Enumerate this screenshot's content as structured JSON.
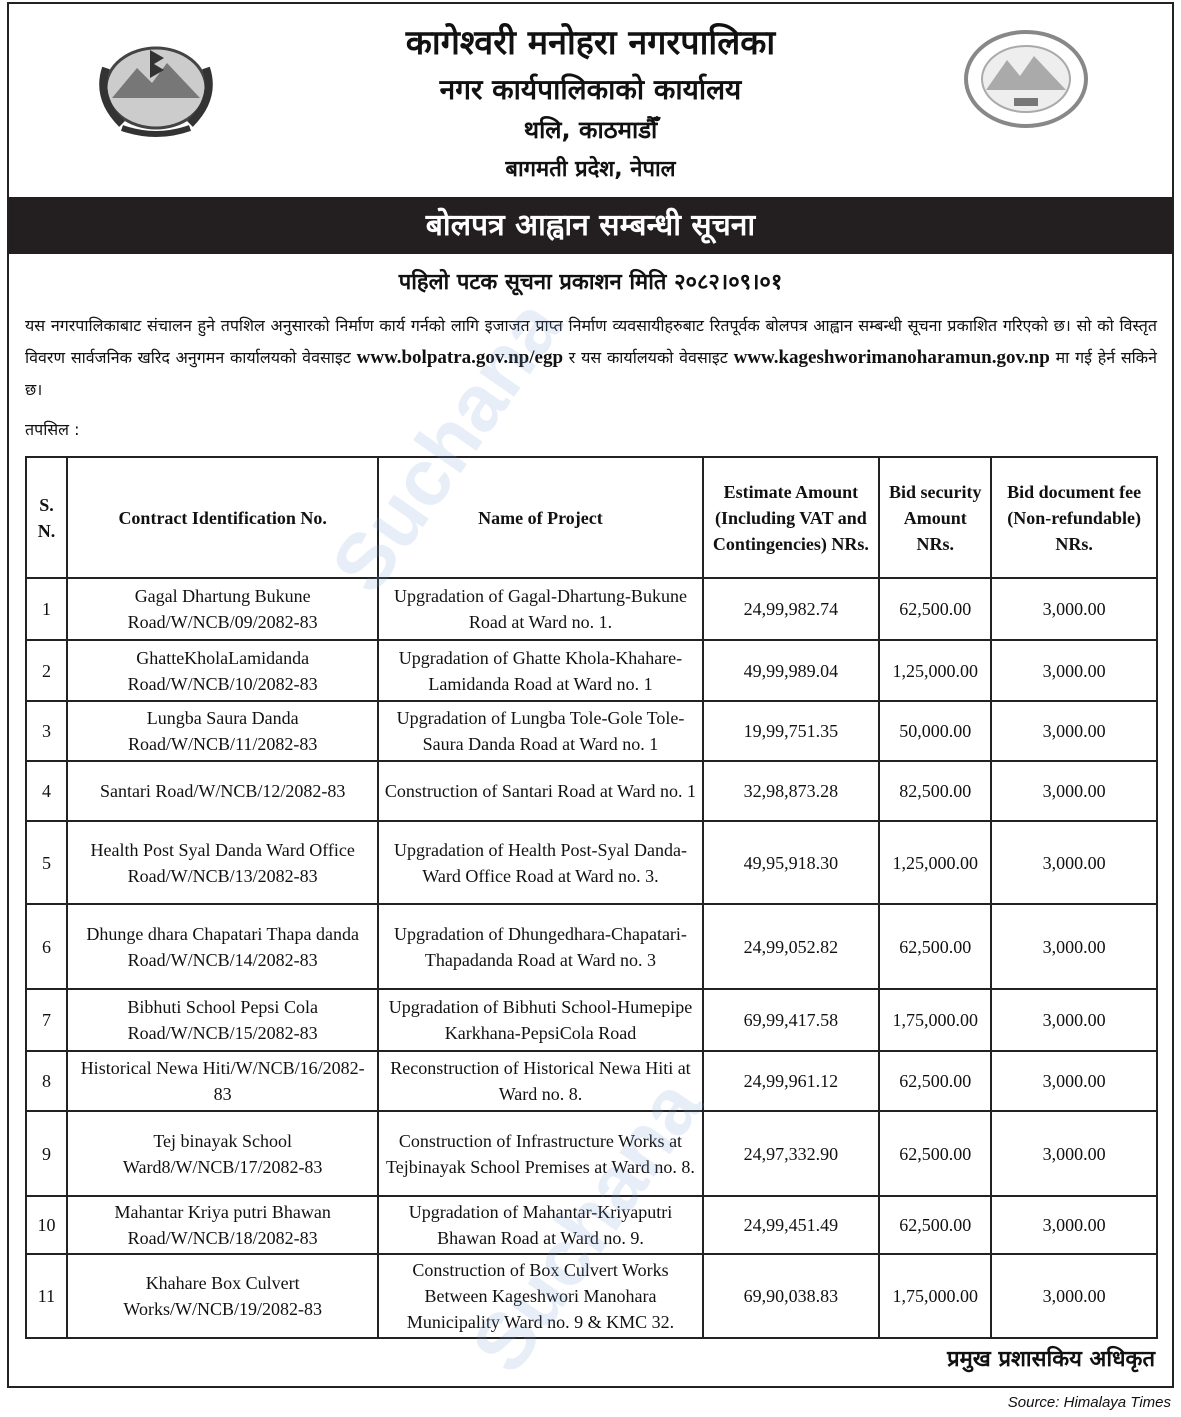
{
  "header": {
    "line1": "कागेश्वरी मनोहरा नगरपालिका",
    "line2": "नगर कार्यपालिकाको कार्यालय",
    "line3": "थलि, काठमाडौँ",
    "line4": "बागमती प्रदेश, नेपाल"
  },
  "notice_title": "बोलपत्र आह्वान सम्बन्धी सूचना",
  "publish_date": "पहिलो पटक सूचना प्रकाशन मिति २०८२।०९।०१",
  "body": {
    "text1": "यस नगरपालिकाबाट संचालन हुने तपशिल अनुसारको निर्माण कार्य गर्नको लागि इजाजत प्राप्त निर्माण व्यवसायीहरुबाट रितपूर्वक बोलपत्र आह्वान सम्बन्धी सूचना प्रकाशित गरिएको छ। सो को विस्तृत विवरण सार्वजनिक खरिद अनुगमन कार्यालयको वेवसाइट ",
    "link1": "www.bolpatra.gov.np/egp",
    "text2": " र यस कार्यालयको वेवसाइट ",
    "link2": "www.kageshworimanoharamun.gov.np",
    "text3": " मा गई हेर्न सकिने छ।"
  },
  "tapasil": "तपसिल :",
  "table": {
    "headers": [
      "S. N.",
      "Contract Identification No.",
      "Name of Project",
      "Estimate Amount (Including VAT and Contingencies) NRs.",
      "Bid security Amount NRs.",
      "Bid document fee (Non-refundable) NRs."
    ],
    "rows": [
      [
        "1",
        "Gagal Dhartung Bukune Road/W/NCB/09/2082-83",
        "Upgradation of Gagal-Dhartung-Bukune Road at Ward no. 1.",
        "24,99,982.74",
        "62,500.00",
        "3,000.00"
      ],
      [
        "2",
        "GhatteKholaLamidanda Road/W/NCB/10/2082-83",
        "Upgradation of Ghatte Khola-Khahare-Lamidanda Road at Ward no. 1",
        "49,99,989.04",
        "1,25,000.00",
        "3,000.00"
      ],
      [
        "3",
        "Lungba Saura Danda Road/W/NCB/11/2082-83",
        "Upgradation of Lungba Tole-Gole Tole-Saura Danda Road at Ward no. 1",
        "19,99,751.35",
        "50,000.00",
        "3,000.00"
      ],
      [
        "4",
        "Santari Road/W/NCB/12/2082-83",
        "Construction of Santari Road at Ward no. 1",
        "32,98,873.28",
        "82,500.00",
        "3,000.00"
      ],
      [
        "5",
        "Health Post Syal Danda Ward Office Road/W/NCB/13/2082-83",
        "Upgradation of Health Post-Syal Danda- Ward Office Road at Ward no. 3.",
        "49,95,918.30",
        "1,25,000.00",
        "3,000.00"
      ],
      [
        "6",
        "Dhunge dhara Chapatari Thapa danda Road/W/NCB/14/2082-83",
        "Upgradation of Dhungedhara-Chapatari- Thapadanda Road at Ward no. 3",
        "24,99,052.82",
        "62,500.00",
        "3,000.00"
      ],
      [
        "7",
        "Bibhuti School Pepsi Cola Road/W/NCB/15/2082-83",
        "Upgradation of Bibhuti School-Humepipe Karkhana-PepsiCola Road",
        "69,99,417.58",
        "1,75,000.00",
        "3,000.00"
      ],
      [
        "8",
        "Historical Newa Hiti/W/NCB/16/2082-83",
        "Reconstruction of Historical Newa Hiti at Ward no. 8.",
        "24,99,961.12",
        "62,500.00",
        "3,000.00"
      ],
      [
        "9",
        "Tej binayak School Ward8/W/NCB/17/2082-83",
        "Construction of Infrastructure Works at Tejbinayak School Premises at Ward no. 8.",
        "24,97,332.90",
        "62,500.00",
        "3,000.00"
      ],
      [
        "10",
        "Mahantar Kriya putri Bhawan Road/W/NCB/18/2082-83",
        "Upgradation of Mahantar-Kriyaputri Bhawan Road at Ward no. 9.",
        "24,99,451.49",
        "62,500.00",
        "3,000.00"
      ],
      [
        "11",
        "Khahare Box Culvert Works/W/NCB/19/2082-83",
        "Construction of Box Culvert Works Between Kageshwori Manohara Municipality Ward no. 9 & KMC 32.",
        "69,90,038.83",
        "1,75,000.00",
        "3,000.00"
      ]
    ]
  },
  "signature": "प्रमुख प्रशासकिय अधिकृत",
  "source": "Source: Himalaya Times",
  "watermark": "Suchana",
  "logo_right_text": "KAGESHWORI MANOHARA MUNICIPALITY",
  "colors": {
    "bar": "#231f20",
    "border": "#222222"
  }
}
